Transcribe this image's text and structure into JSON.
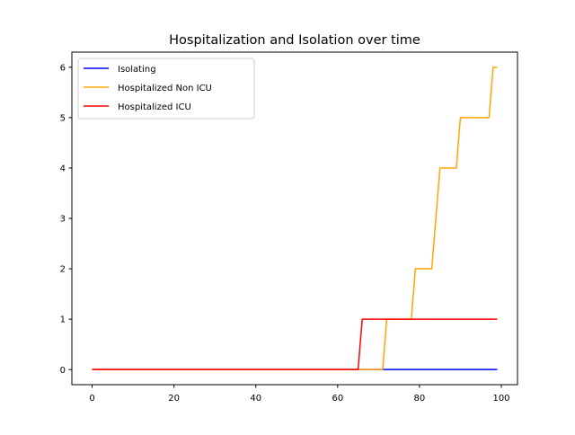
{
  "chart_data": {
    "type": "line",
    "title": "Hospitalization and Isolation over time",
    "xlabel": "",
    "ylabel": "",
    "xlim": [
      -4.95,
      103.95
    ],
    "ylim": [
      -0.3,
      6.3
    ],
    "xticks": [
      0,
      20,
      40,
      60,
      80,
      100
    ],
    "yticks": [
      0,
      1,
      2,
      3,
      4,
      5,
      6
    ],
    "grid": false,
    "legend_position": "upper left",
    "series": [
      {
        "name": "Isolating",
        "color": "#0000ff",
        "points": [
          [
            0,
            0
          ],
          [
            99,
            0
          ]
        ]
      },
      {
        "name": "Hospitalized Non ICU",
        "color": "#ffa500",
        "points": [
          [
            0,
            0
          ],
          [
            71,
            0
          ],
          [
            72,
            1
          ],
          [
            78,
            1
          ],
          [
            79,
            2
          ],
          [
            83,
            2
          ],
          [
            85,
            4
          ],
          [
            89,
            4
          ],
          [
            90,
            5
          ],
          [
            97,
            5
          ],
          [
            98,
            6
          ],
          [
            99,
            6
          ]
        ]
      },
      {
        "name": "Hospitalized ICU",
        "color": "#ff0000",
        "points": [
          [
            0,
            0
          ],
          [
            65,
            0
          ],
          [
            66,
            1
          ],
          [
            99,
            1
          ]
        ]
      }
    ]
  }
}
